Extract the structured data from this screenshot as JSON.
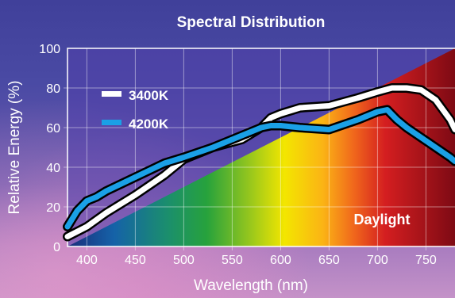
{
  "chart_data": {
    "type": "line",
    "title": "Spectral Distribution",
    "xlabel": "Wavelength (nm)",
    "ylabel": "Relative Energy (%)",
    "xlim": [
      380,
      780
    ],
    "ylim": [
      0,
      100
    ],
    "x_ticks": [
      "400",
      "450",
      "500",
      "550",
      "600",
      "650",
      "700",
      "750"
    ],
    "y_ticks": [
      "0",
      "20",
      "40",
      "60",
      "80",
      "100"
    ],
    "grid": true,
    "legend_position": "top-left",
    "series": [
      {
        "name": "3400K",
        "color": "#ffffff",
        "x": [
          380,
          400,
          420,
          450,
          480,
          500,
          530,
          560,
          580,
          590,
          600,
          620,
          650,
          680,
          700,
          715,
          730,
          745,
          760,
          775,
          780
        ],
        "y": [
          5,
          10,
          17,
          26,
          36,
          44,
          50,
          54,
          60,
          65,
          67,
          70,
          71,
          75,
          78,
          80,
          80,
          79,
          74,
          64,
          59
        ]
      },
      {
        "name": "4200K",
        "color": "#1aa0e6",
        "x": [
          380,
          390,
          400,
          410,
          420,
          450,
          480,
          500,
          530,
          560,
          580,
          590,
          600,
          620,
          650,
          680,
          700,
          710,
          720,
          730,
          745,
          760,
          775,
          780
        ],
        "y": [
          10,
          18,
          23,
          25,
          28,
          35,
          42,
          45,
          50,
          56,
          60,
          61,
          61,
          60,
          59,
          64,
          68,
          69,
          64,
          60,
          55,
          50,
          45,
          43
        ]
      }
    ],
    "reference": {
      "label": "Daylight",
      "x": [
        380,
        780
      ],
      "y": [
        0,
        100
      ]
    }
  }
}
